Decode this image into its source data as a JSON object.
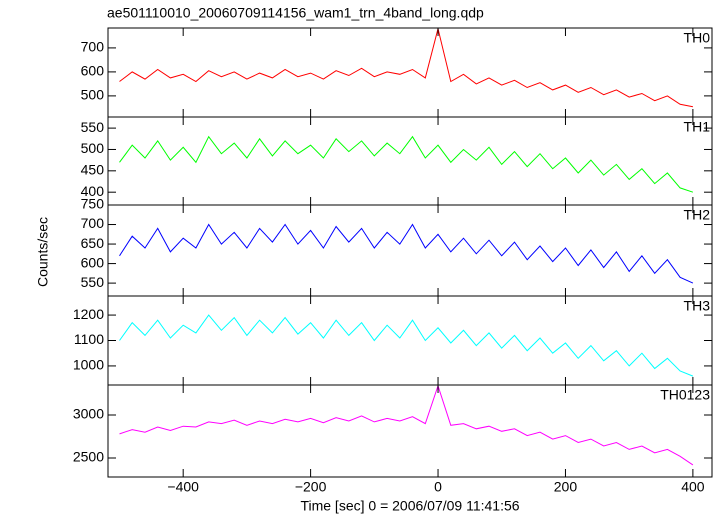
{
  "chart_data": [
    {
      "type": "line",
      "title": "ae501110010_20060709114156_wam1_trn_4band_long.qdp",
      "label": "TH0",
      "color": "#ff0000",
      "xlim": [
        -518,
        430
      ],
      "xticks": [
        {
          "value": -400,
          "label": "−400"
        },
        {
          "value": -200,
          "label": "−200"
        },
        0,
        200,
        400
      ],
      "ylim": [
        412,
        783
      ],
      "yticks": [
        500,
        600,
        700
      ],
      "x": [
        -500,
        -480,
        -460,
        -440,
        -420,
        -400,
        -380,
        -360,
        -340,
        -320,
        -300,
        -280,
        -260,
        -240,
        -220,
        -200,
        -180,
        -160,
        -140,
        -120,
        -100,
        -80,
        -60,
        -40,
        -20,
        0,
        20,
        40,
        60,
        80,
        100,
        120,
        140,
        160,
        180,
        200,
        220,
        240,
        260,
        280,
        300,
        320,
        340,
        360,
        380,
        400
      ],
      "values": [
        560,
        600,
        570,
        610,
        575,
        590,
        560,
        605,
        580,
        600,
        570,
        595,
        575,
        610,
        580,
        595,
        570,
        605,
        585,
        615,
        580,
        600,
        590,
        610,
        575,
        780,
        560,
        590,
        550,
        575,
        545,
        565,
        535,
        555,
        525,
        545,
        515,
        535,
        505,
        525,
        495,
        510,
        480,
        500,
        465,
        455
      ]
    },
    {
      "type": "line",
      "label": "TH1",
      "color": "#00ff00",
      "xlim": [
        -518,
        430
      ],
      "xticks": [
        {
          "value": -400,
          "label": "−400"
        },
        {
          "value": -200,
          "label": "−200"
        },
        0,
        200,
        400
      ],
      "ylim": [
        370,
        576
      ],
      "yticks": [
        400,
        450,
        500,
        550
      ],
      "x": [
        -500,
        -480,
        -460,
        -440,
        -420,
        -400,
        -380,
        -360,
        -340,
        -320,
        -300,
        -280,
        -260,
        -240,
        -220,
        -200,
        -180,
        -160,
        -140,
        -120,
        -100,
        -80,
        -60,
        -40,
        -20,
        0,
        20,
        40,
        60,
        80,
        100,
        120,
        140,
        160,
        180,
        200,
        220,
        240,
        260,
        280,
        300,
        320,
        340,
        360,
        380,
        400
      ],
      "values": [
        470,
        510,
        480,
        520,
        475,
        505,
        470,
        530,
        490,
        515,
        480,
        525,
        485,
        520,
        490,
        510,
        480,
        525,
        495,
        520,
        485,
        515,
        490,
        530,
        480,
        510,
        470,
        500,
        475,
        505,
        465,
        495,
        460,
        490,
        455,
        480,
        445,
        475,
        440,
        465,
        430,
        455,
        420,
        445,
        410,
        400
      ]
    },
    {
      "type": "line",
      "label": "TH2",
      "color": "#0000ff",
      "y_label": "Counts/sec",
      "xlim": [
        -518,
        430
      ],
      "xticks": [
        {
          "value": -400,
          "label": "−400"
        },
        {
          "value": -200,
          "label": "−200"
        },
        0,
        200,
        400
      ],
      "ylim": [
        517,
        750
      ],
      "yticks": [
        550,
        600,
        650,
        700,
        750
      ],
      "x": [
        -500,
        -480,
        -460,
        -440,
        -420,
        -400,
        -380,
        -360,
        -340,
        -320,
        -300,
        -280,
        -260,
        -240,
        -220,
        -200,
        -180,
        -160,
        -140,
        -120,
        -100,
        -80,
        -60,
        -40,
        -20,
        0,
        20,
        40,
        60,
        80,
        100,
        120,
        140,
        160,
        180,
        200,
        220,
        240,
        260,
        280,
        300,
        320,
        340,
        360,
        380,
        400
      ],
      "values": [
        620,
        670,
        640,
        690,
        630,
        665,
        640,
        700,
        650,
        680,
        640,
        690,
        655,
        700,
        650,
        685,
        640,
        695,
        655,
        690,
        640,
        680,
        650,
        700,
        640,
        675,
        630,
        665,
        625,
        660,
        620,
        655,
        610,
        645,
        605,
        640,
        595,
        635,
        590,
        630,
        580,
        620,
        575,
        610,
        565,
        550
      ]
    },
    {
      "type": "line",
      "label": "TH3",
      "color": "#00ffff",
      "xlim": [
        -518,
        430
      ],
      "xticks": [
        {
          "value": -400,
          "label": "−400"
        },
        {
          "value": -200,
          "label": "−200"
        },
        0,
        200,
        400
      ],
      "ylim": [
        925,
        1275
      ],
      "yticks": [
        1000,
        1100,
        1200
      ],
      "x": [
        -500,
        -480,
        -460,
        -440,
        -420,
        -400,
        -380,
        -360,
        -340,
        -320,
        -300,
        -280,
        -260,
        -240,
        -220,
        -200,
        -180,
        -160,
        -140,
        -120,
        -100,
        -80,
        -60,
        -40,
        -20,
        0,
        20,
        40,
        60,
        80,
        100,
        120,
        140,
        160,
        180,
        200,
        220,
        240,
        260,
        280,
        300,
        320,
        340,
        360,
        380,
        400
      ],
      "values": [
        1100,
        1170,
        1120,
        1180,
        1110,
        1160,
        1130,
        1200,
        1140,
        1190,
        1120,
        1180,
        1130,
        1190,
        1125,
        1170,
        1110,
        1180,
        1120,
        1170,
        1100,
        1160,
        1110,
        1180,
        1100,
        1150,
        1090,
        1140,
        1080,
        1130,
        1070,
        1120,
        1060,
        1110,
        1050,
        1090,
        1030,
        1080,
        1020,
        1060,
        1000,
        1050,
        990,
        1030,
        980,
        960
      ]
    },
    {
      "type": "line",
      "label": "TH0123",
      "color": "#ff00ff",
      "x_label": "Time [sec] 0 = 2006/07/09 11:41:56",
      "xlim": [
        -518,
        430
      ],
      "xticks": [
        {
          "value": -400,
          "label": "−400"
        },
        {
          "value": -200,
          "label": "−200"
        },
        0,
        200,
        400
      ],
      "ylim": [
        2279,
        3349
      ],
      "yticks": [
        2500,
        3000
      ],
      "x": [
        -500,
        -480,
        -460,
        -440,
        -420,
        -400,
        -380,
        -360,
        -340,
        -320,
        -300,
        -280,
        -260,
        -240,
        -220,
        -200,
        -180,
        -160,
        -140,
        -120,
        -100,
        -80,
        -60,
        -40,
        -20,
        0,
        20,
        40,
        60,
        80,
        100,
        120,
        140,
        160,
        180,
        200,
        220,
        240,
        260,
        280,
        300,
        320,
        340,
        360,
        380,
        400
      ],
      "values": [
        2780,
        2830,
        2800,
        2860,
        2820,
        2870,
        2860,
        2920,
        2900,
        2940,
        2880,
        2930,
        2900,
        2950,
        2920,
        2960,
        2910,
        2970,
        2930,
        2990,
        2920,
        2960,
        2930,
        2980,
        2900,
        3340,
        2880,
        2900,
        2840,
        2870,
        2810,
        2840,
        2760,
        2800,
        2720,
        2760,
        2680,
        2720,
        2640,
        2680,
        2600,
        2640,
        2560,
        2600,
        2520,
        2420
      ]
    }
  ]
}
